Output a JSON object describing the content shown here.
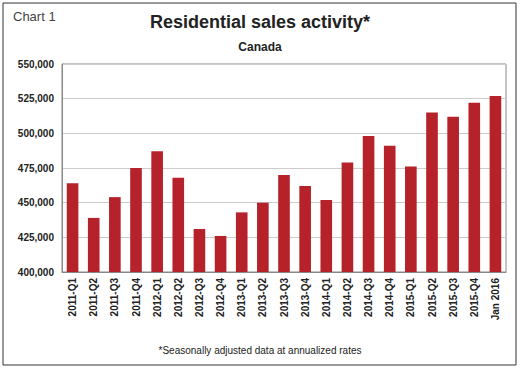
{
  "chart_data": {
    "type": "bar",
    "chart_label": "Chart 1",
    "title": "Residential sales activity*",
    "subtitle": "Canada",
    "footnote": "*Seasonally adjusted data at annualized rates",
    "categories": [
      "2011-Q1",
      "2011-Q2",
      "2011-Q3",
      "2011-Q4",
      "2012-Q1",
      "2012-Q2",
      "2012-Q3",
      "2012-Q4",
      "2013-Q1",
      "2013-Q2",
      "2013-Q3",
      "2013-Q4",
      "2014-Q1",
      "2014-Q2",
      "2014-Q3",
      "2014-Q4",
      "2015-Q1",
      "2015-Q2",
      "2015-Q3",
      "2015-Q4",
      "Jan 2016"
    ],
    "values": [
      464000,
      439000,
      454000,
      475000,
      487000,
      468000,
      431000,
      426000,
      443000,
      450000,
      470000,
      462000,
      452000,
      479000,
      498000,
      491000,
      476000,
      515000,
      512000,
      522000,
      527000
    ],
    "color": "#b5222a",
    "ylim": [
      400000,
      550000
    ],
    "yticks": [
      {
        "value": 400000,
        "label": "400,000"
      },
      {
        "value": 425000,
        "label": "425,000"
      },
      {
        "value": 450000,
        "label": "450,000"
      },
      {
        "value": 475000,
        "label": "475,000"
      },
      {
        "value": 500000,
        "label": "500,000"
      },
      {
        "value": 525000,
        "label": "525,000"
      },
      {
        "value": 550000,
        "label": "550,000"
      }
    ],
    "grid": true
  }
}
